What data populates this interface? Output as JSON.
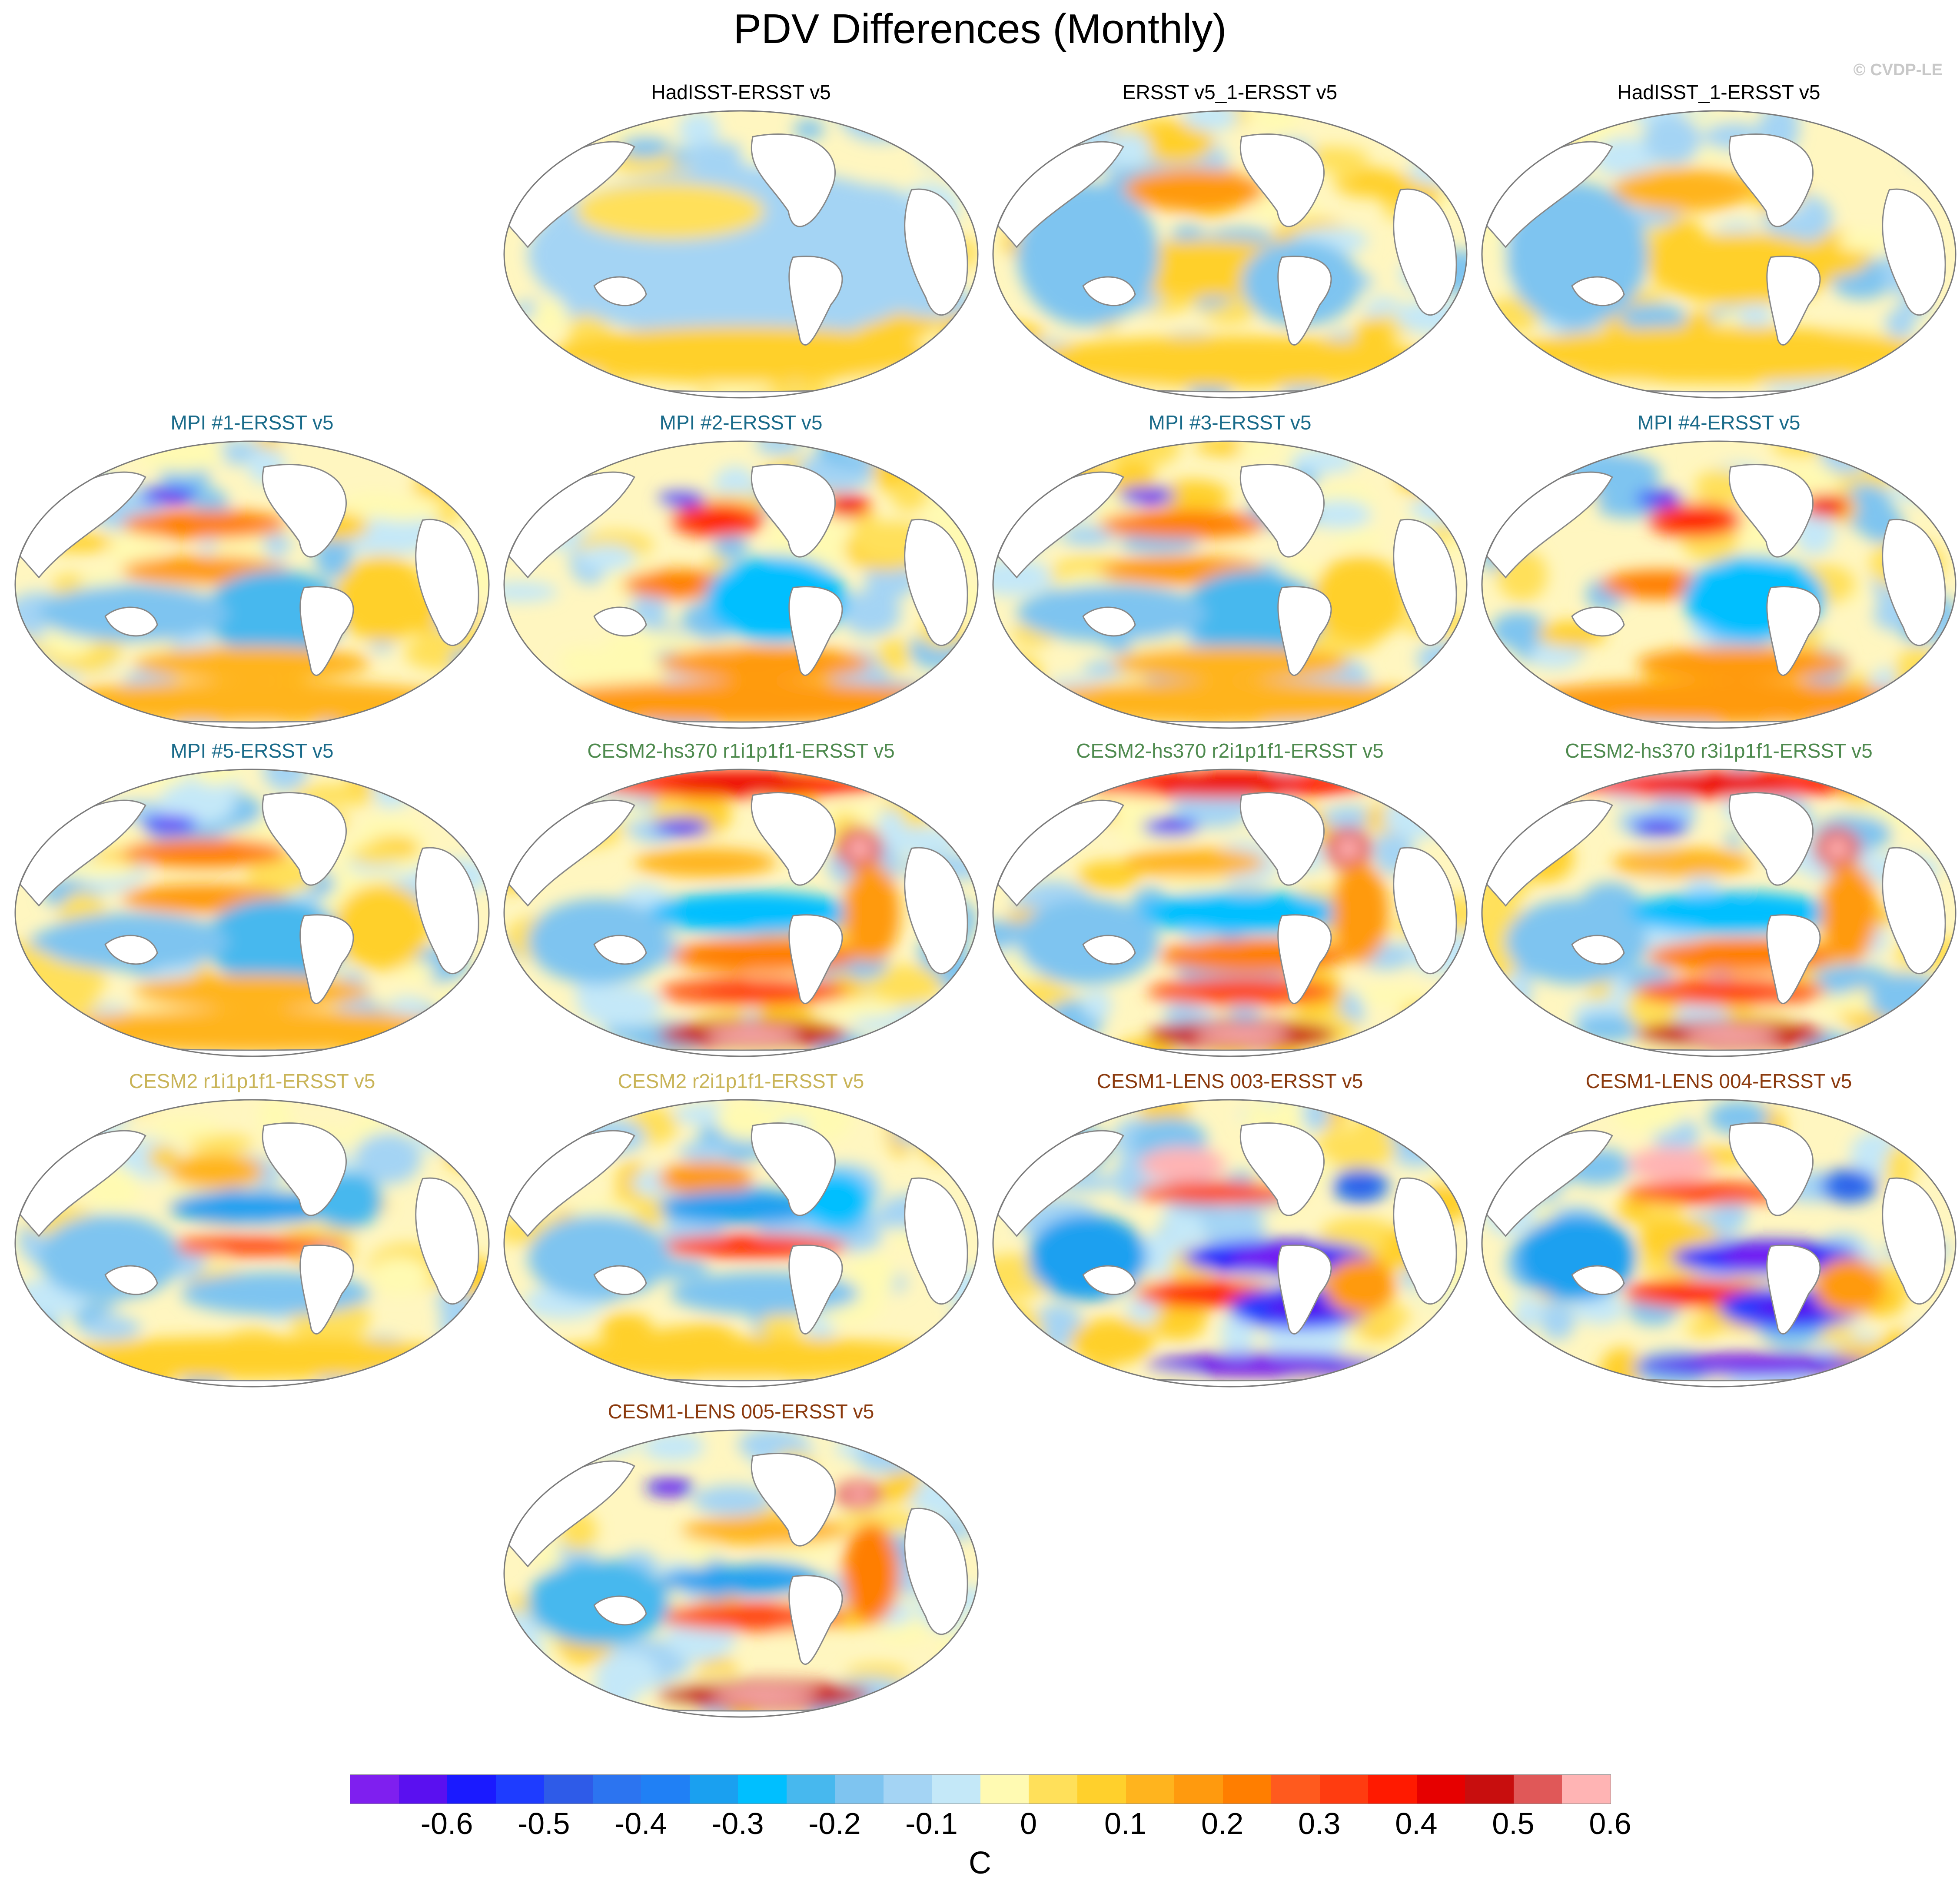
{
  "title": "PDV Differences (Monthly)",
  "credit": "© CVDP-LE",
  "panels": [
    {
      "title": "HadISST-ERSST v5",
      "color": "#000000",
      "pattern": "weak_mixed"
    },
    {
      "title": "ERSST v5_1-ERSST v5",
      "color": "#000000",
      "pattern": "weak_npac_warm"
    },
    {
      "title": "HadISST_1-ERSST v5",
      "color": "#000000",
      "pattern": "weak_mixed_warm"
    },
    {
      "title": "MPI #1-ERSST v5",
      "color": "#1a6b8a",
      "pattern": "mpi"
    },
    {
      "title": "MPI #2-ERSST v5",
      "color": "#1a6b8a",
      "pattern": "mpi_warm"
    },
    {
      "title": "MPI #3-ERSST v5",
      "color": "#1a6b8a",
      "pattern": "mpi"
    },
    {
      "title": "MPI #4-ERSST v5",
      "color": "#1a6b8a",
      "pattern": "mpi_warm"
    },
    {
      "title": "MPI #5-ERSST v5",
      "color": "#1a6b8a",
      "pattern": "mpi"
    },
    {
      "title": "CESM2-hs370 r1i1p1f1-ERSST v5",
      "color": "#4e8a4e",
      "pattern": "cesm2hs"
    },
    {
      "title": "CESM2-hs370 r2i1p1f1-ERSST v5",
      "color": "#4e8a4e",
      "pattern": "cesm2hs"
    },
    {
      "title": "CESM2-hs370 r3i1p1f1-ERSST v5",
      "color": "#4e8a4e",
      "pattern": "cesm2hs"
    },
    {
      "title": "CESM2 r1i1p1f1-ERSST v5",
      "color": "#c9b458",
      "pattern": "cesm2"
    },
    {
      "title": "CESM2 r2i1p1f1-ERSST v5",
      "color": "#c9b458",
      "pattern": "cesm2_strong"
    },
    {
      "title": "CESM1-LENS 003-ERSST v5",
      "color": "#8b3a0e",
      "pattern": "cesm1"
    },
    {
      "title": "CESM1-LENS 004-ERSST v5",
      "color": "#8b3a0e",
      "pattern": "cesm1"
    },
    {
      "title": "CESM1-LENS 005-ERSST v5",
      "color": "#8b3a0e",
      "pattern": "cesm1_005"
    }
  ],
  "colorbar": {
    "colors": [
      "#7f1fef",
      "#5a10f0",
      "#1a1aff",
      "#1e3cff",
      "#2e5be8",
      "#2c74f0",
      "#2080f5",
      "#1aa0f0",
      "#00bfff",
      "#47b8ee",
      "#7ec4f0",
      "#a4d4f4",
      "#c4e8f8",
      "#fffab2",
      "#ffe05a",
      "#ffd02c",
      "#ffb41e",
      "#ff9a0e",
      "#ff7e00",
      "#ff5a1e",
      "#ff3c10",
      "#ff1a00",
      "#e60000",
      "#c80e0e",
      "#e05858",
      "#ffb4b4"
    ],
    "ticks": [
      "-0.6",
      "-0.5",
      "-0.4",
      "-0.3",
      "-0.2",
      "-0.1",
      "0",
      "0.1",
      "0.2",
      "0.3",
      "0.4",
      "0.5",
      "0.6"
    ],
    "units": "C"
  }
}
